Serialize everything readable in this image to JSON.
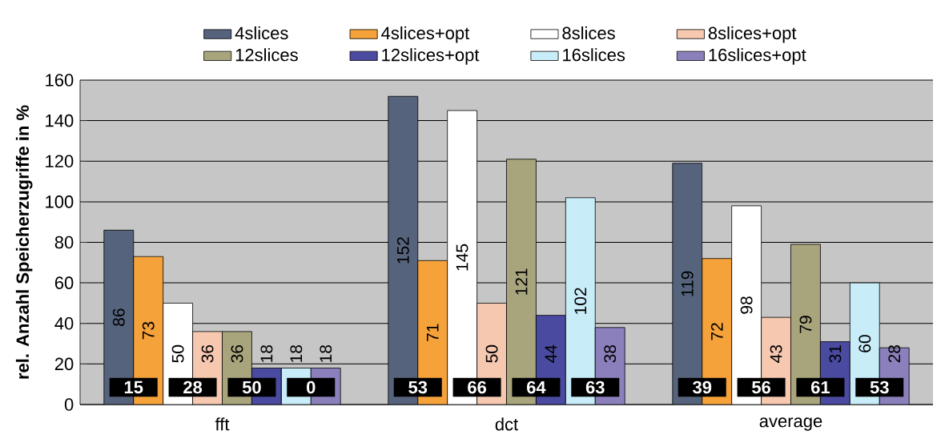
{
  "chart_data": {
    "type": "bar",
    "ylabel": "rel. Anzahl Speicherzugriffe in %",
    "categories": [
      "fft",
      "dct",
      "average"
    ],
    "series": [
      {
        "name": "4slices",
        "color": "#56637c",
        "values": [
          86,
          152,
          119
        ]
      },
      {
        "name": "4slices+opt",
        "color": "#f5a23a",
        "values": [
          73,
          71,
          72
        ]
      },
      {
        "name": "8slices",
        "color": "#ffffff",
        "values": [
          50,
          145,
          98
        ]
      },
      {
        "name": "8slices+opt",
        "color": "#f6c8b0",
        "values": [
          36,
          50,
          43
        ]
      },
      {
        "name": "12slices",
        "color": "#a8a47c",
        "values": [
          36,
          121,
          79
        ]
      },
      {
        "name": "12slices+opt",
        "color": "#4a4aa0",
        "values": [
          18,
          44,
          31
        ]
      },
      {
        "name": "16slices",
        "color": "#c8ecf8",
        "values": [
          18,
          102,
          60
        ]
      },
      {
        "name": "16slices+opt",
        "color": "#8c80bc",
        "values": [
          18,
          38,
          28
        ]
      }
    ],
    "ylim": [
      0,
      160
    ],
    "yticks": [
      0,
      20,
      40,
      60,
      80,
      100,
      120,
      140,
      160
    ],
    "grid": "y",
    "legend": "top",
    "data_labels": true,
    "annotations": [
      "15",
      "28",
      "50",
      "0",
      "53",
      "66",
      "64",
      "63",
      "39",
      "56",
      "61",
      "53"
    ]
  }
}
